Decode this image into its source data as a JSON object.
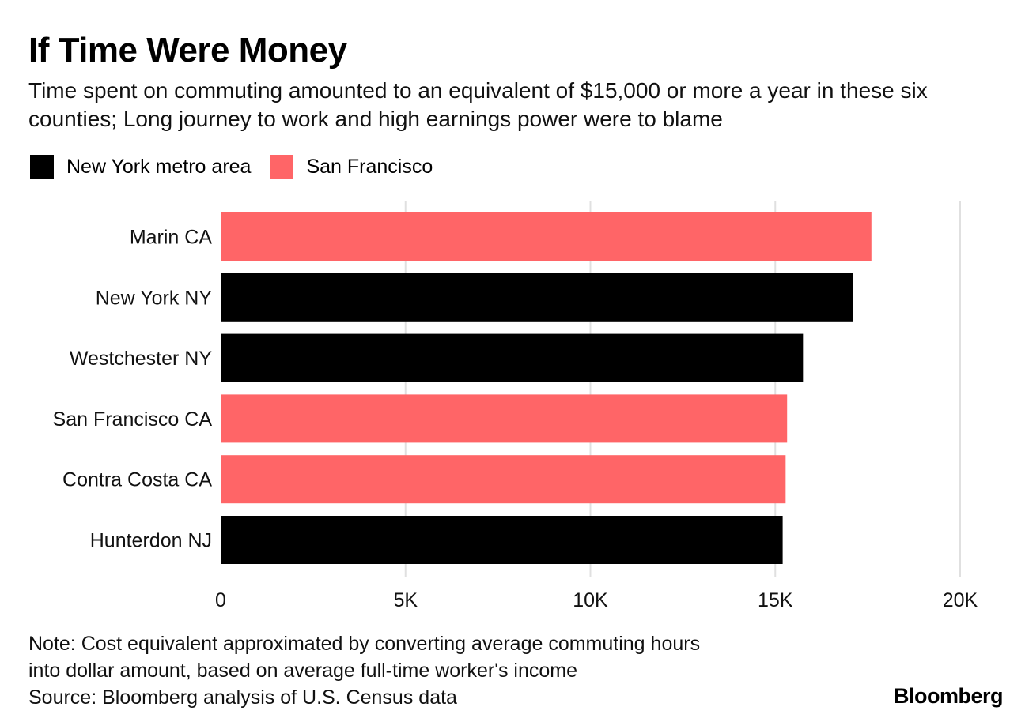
{
  "title": "If Time Were Money",
  "subtitle": "Time spent on commuting amounted to an equivalent of $15,000 or more a year in these six counties; Long journey to work and high earnings power were to blame",
  "legend": [
    {
      "label": "New York metro area",
      "color": "#000000"
    },
    {
      "label": "San Francisco",
      "color": "#ff6567"
    }
  ],
  "chart_data": {
    "type": "bar",
    "orientation": "horizontal",
    "categories": [
      "Marin CA",
      "New York NY",
      "Westchester NY",
      "San Francisco CA",
      "Contra Costa CA",
      "Hunterdon NJ"
    ],
    "values": [
      17600,
      17100,
      15750,
      15320,
      15280,
      15200
    ],
    "groups": [
      "San Francisco",
      "New York metro area",
      "New York metro area",
      "San Francisco",
      "San Francisco",
      "New York metro area"
    ],
    "xlim": [
      0,
      20000
    ],
    "xticks": [
      0,
      5000,
      10000,
      15000,
      20000
    ],
    "xtick_labels": [
      "0",
      "5K",
      "10K",
      "15K",
      "20K"
    ],
    "grid": true,
    "legend_position": "top-left"
  },
  "notes": [
    "Note: Cost equivalent approximated by converting average commuting hours",
    "into dollar amount, based on average full-time worker's income",
    "Source: Bloomberg analysis of U.S. Census data"
  ],
  "brand": "Bloomberg"
}
